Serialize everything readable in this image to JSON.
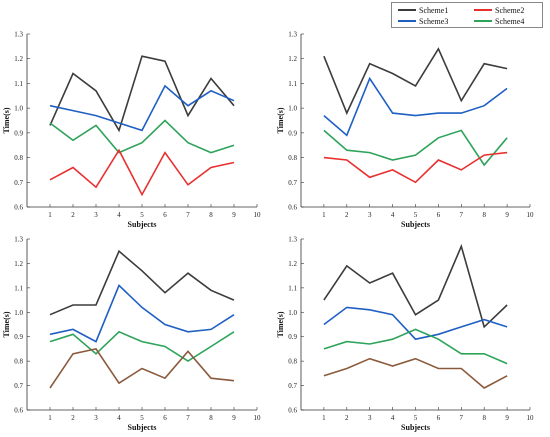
{
  "colors": {
    "Scheme1": "#3c3c3c",
    "Scheme2": "#e8312f",
    "Scheme3": "#1f5fc4",
    "Scheme4": "#2ea35a",
    "Brown": "#8b5a3c"
  },
  "legend": {
    "placement": "top-right",
    "items": [
      "Scheme1",
      "Scheme2",
      "Scheme3",
      "Scheme4"
    ]
  },
  "chart_data": [
    {
      "type": "line",
      "panel": "top-left",
      "xlabel": "Subjects",
      "ylabel": "Time(s)",
      "xlim": [
        0,
        10
      ],
      "ylim": [
        0.6,
        1.3
      ],
      "x_ticks": [
        "1",
        "2",
        "3",
        "4",
        "5",
        "6",
        "7",
        "8",
        "9",
        "10"
      ],
      "y_ticks": [
        "0.6",
        "0.7",
        "0.8",
        "0.9",
        "1.0",
        "1.1",
        "1.2",
        "1.3"
      ],
      "x": [
        1,
        2,
        3,
        4,
        5,
        6,
        7,
        8,
        9
      ],
      "series": [
        {
          "name": "Scheme1",
          "color_key": "Scheme1",
          "values": [
            0.93,
            1.14,
            1.07,
            0.91,
            1.21,
            1.19,
            0.97,
            1.12,
            1.01
          ]
        },
        {
          "name": "Scheme3",
          "color_key": "Scheme3",
          "values": [
            1.01,
            0.99,
            0.97,
            0.94,
            0.91,
            1.09,
            1.01,
            1.07,
            1.03
          ]
        },
        {
          "name": "Scheme4",
          "color_key": "Scheme4",
          "values": [
            0.94,
            0.87,
            0.93,
            0.82,
            0.86,
            0.95,
            0.86,
            0.82,
            0.85
          ]
        },
        {
          "name": "Scheme2",
          "color_key": "Scheme2",
          "values": [
            0.71,
            0.76,
            0.68,
            0.83,
            0.65,
            0.82,
            0.69,
            0.76,
            0.78
          ]
        }
      ]
    },
    {
      "type": "line",
      "panel": "top-right",
      "xlabel": "Subjects",
      "ylabel": "Time(s)",
      "xlim": [
        0,
        10
      ],
      "ylim": [
        0.6,
        1.3
      ],
      "x_ticks": [
        "1",
        "2",
        "3",
        "4",
        "5",
        "6",
        "7",
        "8",
        "9",
        "10"
      ],
      "y_ticks": [
        "0.6",
        "0.7",
        "0.8",
        "0.9",
        "1.0",
        "1.1",
        "1.2",
        "1.3"
      ],
      "x": [
        1,
        2,
        3,
        4,
        5,
        6,
        7,
        8,
        9
      ],
      "series": [
        {
          "name": "Scheme1",
          "color_key": "Scheme1",
          "values": [
            1.21,
            0.98,
            1.18,
            1.14,
            1.09,
            1.24,
            1.03,
            1.18,
            1.16
          ]
        },
        {
          "name": "Scheme3",
          "color_key": "Scheme3",
          "values": [
            0.97,
            0.89,
            1.12,
            0.98,
            0.97,
            0.98,
            0.98,
            1.01,
            1.08
          ]
        },
        {
          "name": "Scheme4",
          "color_key": "Scheme4",
          "values": [
            0.91,
            0.83,
            0.82,
            0.79,
            0.81,
            0.88,
            0.91,
            0.77,
            0.88
          ]
        },
        {
          "name": "Scheme2",
          "color_key": "Scheme2",
          "values": [
            0.8,
            0.79,
            0.72,
            0.75,
            0.7,
            0.79,
            0.75,
            0.81,
            0.82
          ]
        }
      ]
    },
    {
      "type": "line",
      "panel": "bottom-left",
      "xlabel": "Subjects",
      "ylabel": "Time(s)",
      "xlim": [
        0,
        10
      ],
      "ylim": [
        0.6,
        1.3
      ],
      "x_ticks": [
        "1",
        "2",
        "3",
        "4",
        "5",
        "6",
        "7",
        "8",
        "9",
        "10"
      ],
      "y_ticks": [
        "0.6",
        "0.7",
        "0.8",
        "0.9",
        "1.0",
        "1.1",
        "1.2",
        "1.3"
      ],
      "x": [
        1,
        2,
        3,
        4,
        5,
        6,
        7,
        8,
        9
      ],
      "series": [
        {
          "name": "Scheme1",
          "color_key": "Scheme1",
          "values": [
            0.99,
            1.03,
            1.03,
            1.25,
            1.17,
            1.08,
            1.16,
            1.09,
            1.05
          ]
        },
        {
          "name": "Scheme3",
          "color_key": "Scheme3",
          "values": [
            0.91,
            0.93,
            0.88,
            1.11,
            1.02,
            0.95,
            0.92,
            0.93,
            0.99
          ]
        },
        {
          "name": "Scheme4",
          "color_key": "Scheme4",
          "values": [
            0.88,
            0.91,
            0.83,
            0.92,
            0.88,
            0.86,
            0.8,
            0.86,
            0.92
          ]
        },
        {
          "name": "",
          "color_key": "Brown",
          "values": [
            0.69,
            0.83,
            0.85,
            0.71,
            0.77,
            0.73,
            0.84,
            0.73,
            0.72
          ]
        }
      ]
    },
    {
      "type": "line",
      "panel": "bottom-right",
      "xlabel": "Subjects",
      "ylabel": "Time(s)",
      "xlim": [
        0,
        10
      ],
      "ylim": [
        0.6,
        1.3
      ],
      "x_ticks": [
        "1",
        "2",
        "3",
        "4",
        "5",
        "6",
        "7",
        "8",
        "9",
        "10"
      ],
      "y_ticks": [
        "0.6",
        "0.7",
        "0.8",
        "0.9",
        "1.0",
        "1.1",
        "1.2",
        "1.3"
      ],
      "x": [
        1,
        2,
        3,
        4,
        5,
        6,
        7,
        8,
        9
      ],
      "series": [
        {
          "name": "Scheme1",
          "color_key": "Scheme1",
          "values": [
            1.05,
            1.19,
            1.12,
            1.16,
            0.99,
            1.05,
            1.27,
            0.94,
            1.03
          ]
        },
        {
          "name": "Scheme3",
          "color_key": "Scheme3",
          "values": [
            0.95,
            1.02,
            1.01,
            0.99,
            0.89,
            0.91,
            0.94,
            0.97,
            0.94
          ]
        },
        {
          "name": "Scheme4",
          "color_key": "Scheme4",
          "values": [
            0.85,
            0.88,
            0.87,
            0.89,
            0.93,
            0.89,
            0.83,
            0.83,
            0.79
          ]
        },
        {
          "name": "",
          "color_key": "Brown",
          "values": [
            0.74,
            0.77,
            0.81,
            0.78,
            0.81,
            0.77,
            0.77,
            0.69,
            0.74
          ]
        }
      ]
    }
  ]
}
